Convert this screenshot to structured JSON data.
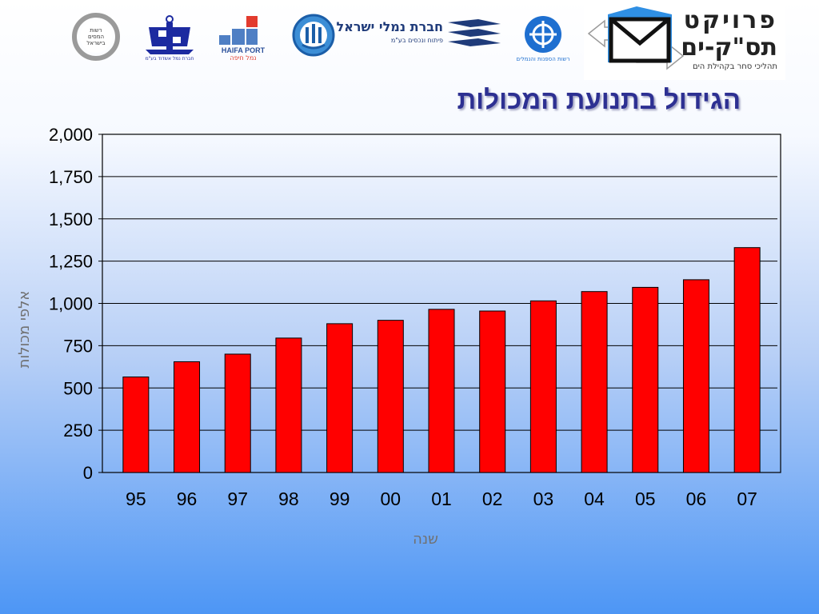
{
  "header": {
    "logos": [
      {
        "name": "tax-authority-logo",
        "text": "רשות המסים בישראל"
      },
      {
        "name": "ashdod-port-logo",
        "text": "חברת נמל אשדוד בע\"מ"
      },
      {
        "name": "haifa-port-logo",
        "text_en": "HAIFA PORT",
        "text_he": "נמל חיפה"
      },
      {
        "name": "eilat-port-emblem",
        "text": ""
      },
      {
        "name": "israel-ports-company-logo",
        "text": "חברת נמלי ישראל",
        "subtext": "פיתוח ונכסים בע\"מ"
      },
      {
        "name": "shipping-ports-authority-logo",
        "text": "רשות הספנות והנמלים"
      }
    ],
    "project": {
      "title_line1": "פרויקט",
      "title_line2": "תס\"ק-ים",
      "subtitle": "תהליכי סחר בקהילת הים"
    }
  },
  "colors": {
    "bar": "#ff0000",
    "bar_border": "#000000",
    "title": "#2d3092",
    "axis_title": "#707070",
    "background_top": "#ffffff",
    "background_bottom": "#4d96f5"
  },
  "chart_data": {
    "type": "bar",
    "title": "הגידול בתנועת המכולות",
    "xlabel": "שנה",
    "ylabel": "אלפי מכולות",
    "categories": [
      "95",
      "96",
      "97",
      "98",
      "99",
      "00",
      "01",
      "02",
      "03",
      "04",
      "05",
      "06",
      "07"
    ],
    "values": [
      565,
      655,
      700,
      795,
      880,
      900,
      965,
      955,
      1015,
      1070,
      1095,
      1140,
      1330
    ],
    "ylim": [
      0,
      2000
    ],
    "yticks": [
      0,
      250,
      500,
      750,
      1000,
      1250,
      1500,
      1750,
      2000
    ],
    "ytick_labels": [
      "0",
      "250",
      "500",
      "750",
      "1,000",
      "1,250",
      "1,500",
      "1,750",
      "2,000"
    ],
    "grid": true,
    "legend": "none"
  }
}
